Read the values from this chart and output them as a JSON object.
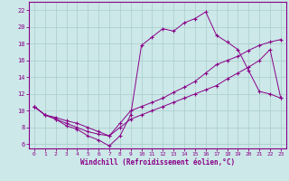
{
  "xlabel": "Windchill (Refroidissement éolien,°C)",
  "background_color": "#cce8e8",
  "grid_color": "#aacccc",
  "line_color": "#880088",
  "xlim": [
    -0.5,
    23.5
  ],
  "ylim": [
    5.5,
    23
  ],
  "yticks": [
    6,
    8,
    10,
    12,
    14,
    16,
    18,
    20,
    22
  ],
  "xticks": [
    0,
    1,
    2,
    3,
    4,
    5,
    6,
    7,
    8,
    9,
    10,
    11,
    12,
    13,
    14,
    15,
    16,
    17,
    18,
    19,
    20,
    21,
    22,
    23
  ],
  "series": [
    {
      "x": [
        0,
        1,
        2,
        3,
        4,
        5,
        6,
        7,
        8,
        9,
        10,
        11,
        12,
        13,
        14,
        15,
        16,
        17,
        18,
        19,
        20,
        21,
        22,
        23
      ],
      "y": [
        10.5,
        9.5,
        9.0,
        8.2,
        7.8,
        7.0,
        6.5,
        5.8,
        7.0,
        9.5,
        17.8,
        18.8,
        19.8,
        19.5,
        20.5,
        21.0,
        21.8,
        19.0,
        18.2,
        17.3,
        14.8,
        12.3,
        12.0,
        11.5
      ]
    },
    {
      "x": [
        0,
        1,
        2,
        3,
        4,
        5,
        6,
        7,
        8,
        9,
        10,
        11,
        12,
        13,
        14,
        15,
        16,
        17,
        18,
        19,
        20,
        21,
        22,
        23
      ],
      "y": [
        10.5,
        9.5,
        9.0,
        8.5,
        8.0,
        7.5,
        7.2,
        7.0,
        8.5,
        10.0,
        10.5,
        11.0,
        11.5,
        12.2,
        12.8,
        13.5,
        14.5,
        15.5,
        16.0,
        16.5,
        17.2,
        17.8,
        18.2,
        18.5
      ]
    },
    {
      "x": [
        0,
        1,
        2,
        3,
        4,
        5,
        6,
        7,
        8,
        9,
        10,
        11,
        12,
        13,
        14,
        15,
        16,
        17,
        18,
        19,
        20,
        21,
        22,
        23
      ],
      "y": [
        10.5,
        9.5,
        9.2,
        8.8,
        8.5,
        8.0,
        7.5,
        7.0,
        8.0,
        9.0,
        9.5,
        10.0,
        10.5,
        11.0,
        11.5,
        12.0,
        12.5,
        13.0,
        13.8,
        14.5,
        15.2,
        16.0,
        17.3,
        11.5
      ]
    }
  ]
}
